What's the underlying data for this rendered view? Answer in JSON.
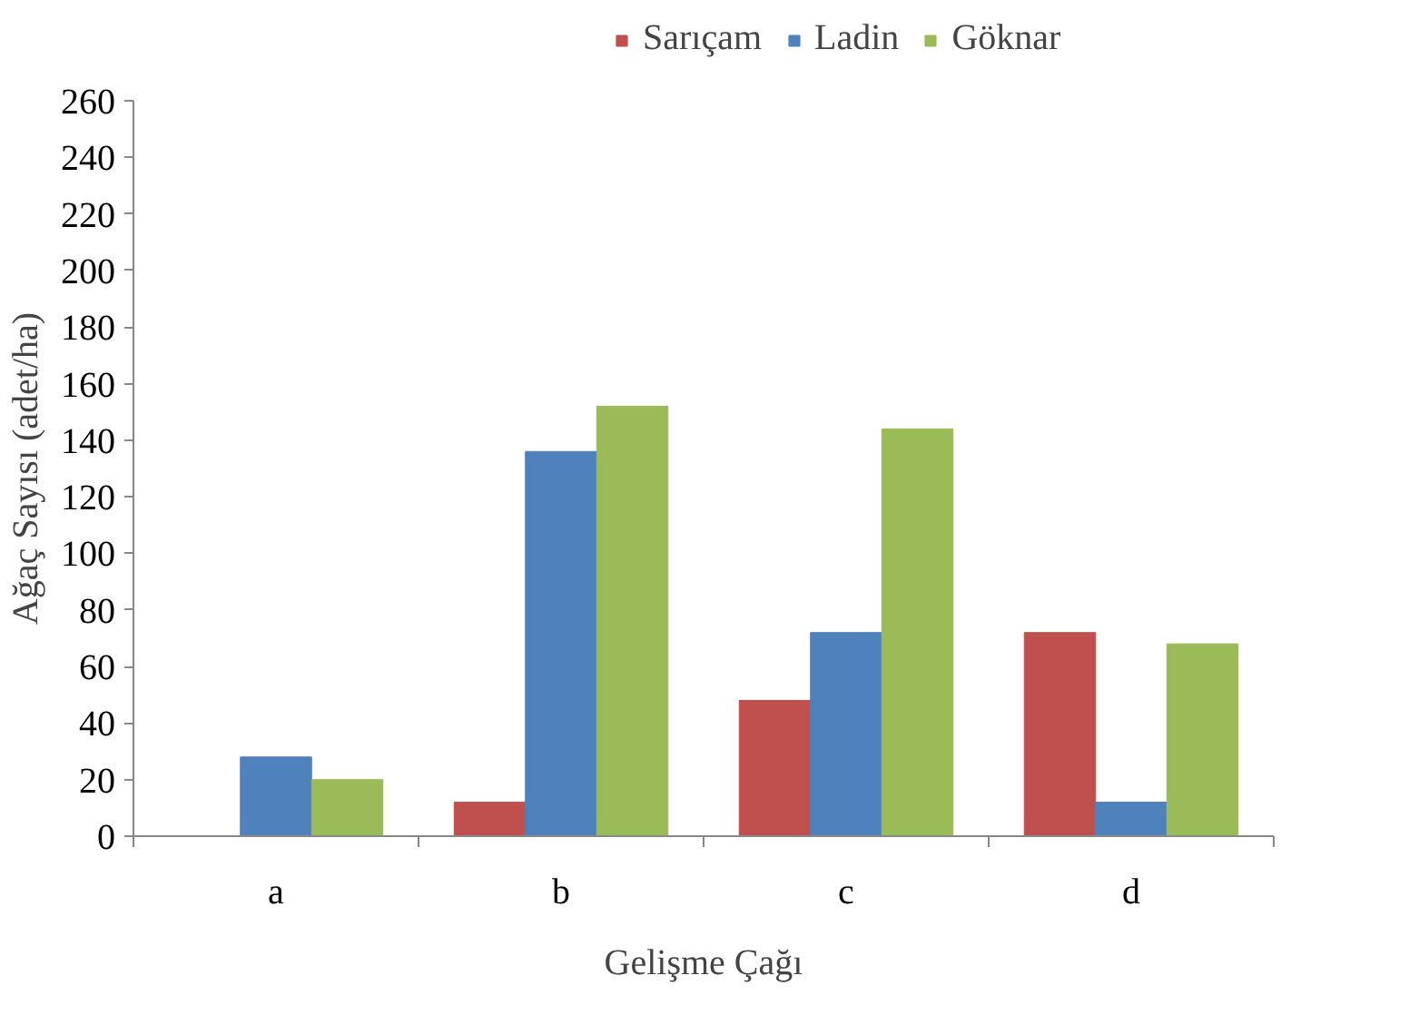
{
  "chart_data": {
    "type": "bar",
    "xlabel": "Gelişme Çağı",
    "ylabel": "Ağaç Sayısı (adet/ha)",
    "categories": [
      "a",
      "b",
      "c",
      "d"
    ],
    "series": [
      {
        "name": "Sarıçam",
        "color": "#c0504d",
        "values": [
          0,
          12,
          48,
          72
        ]
      },
      {
        "name": "Ladin",
        "color": "#4f81bd",
        "values": [
          28,
          136,
          72,
          12
        ]
      },
      {
        "name": "Göknar",
        "color": "#9bbb59",
        "values": [
          20,
          152,
          144,
          68
        ]
      }
    ],
    "ylim": [
      0,
      260
    ],
    "yticks": [
      0,
      20,
      40,
      60,
      80,
      100,
      120,
      140,
      160,
      180,
      200,
      220,
      240,
      260
    ],
    "grid": false,
    "legend": "top"
  }
}
